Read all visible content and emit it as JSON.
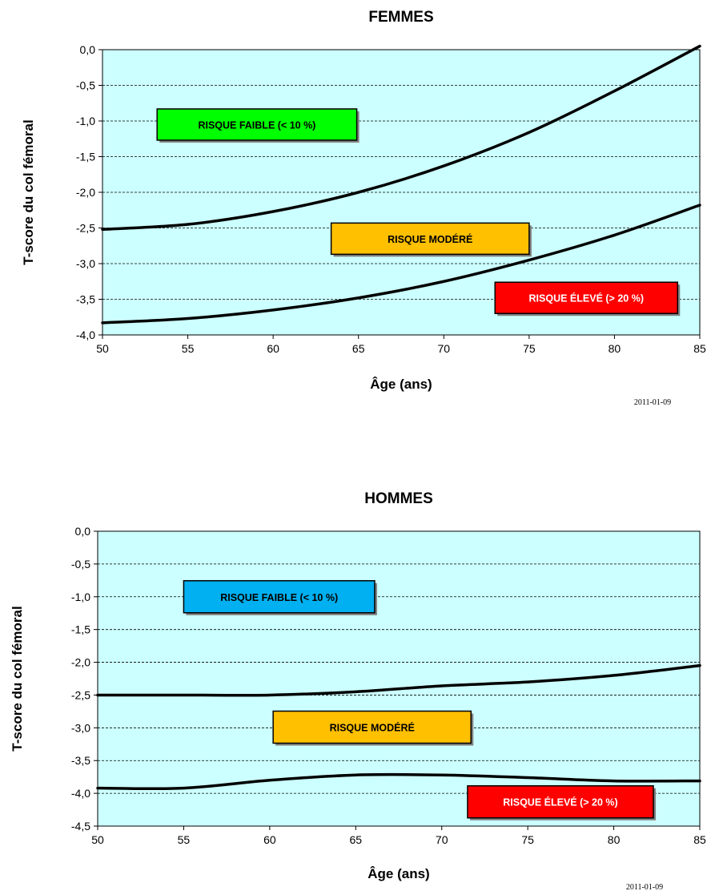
{
  "chart_data": [
    {
      "type": "line",
      "title": "FEMMES",
      "xlabel": "Âge (ans)",
      "ylabel": "T-score du col fémoral",
      "xlim": [
        50,
        85
      ],
      "ylim": [
        -4.0,
        0.0
      ],
      "x_ticks": [
        "50",
        "55",
        "60",
        "65",
        "70",
        "75",
        "80",
        "85"
      ],
      "y_ticks": [
        "0,0",
        "-0,5",
        "-1,0",
        "-1,5",
        "-2,0",
        "-2,5",
        "-3,0",
        "-3,5",
        "-4,0"
      ],
      "grid": "horizontal-dashed",
      "background_color": "#ccffff",
      "date_stamp": "2011-01-09",
      "series": [
        {
          "x": [
            50,
            55,
            60,
            65,
            70,
            75,
            80,
            85
          ],
          "y": [
            -2.52,
            -2.45,
            -2.27,
            -2.0,
            -1.63,
            -1.16,
            -0.58,
            0.05
          ]
        },
        {
          "x": [
            50,
            55,
            60,
            65,
            70,
            75,
            80,
            85
          ],
          "y": [
            -3.83,
            -3.77,
            -3.65,
            -3.48,
            -3.25,
            -2.95,
            -2.6,
            -2.18
          ]
        }
      ],
      "zones": [
        {
          "label": "RISQUE FAIBLE (< 10 %)",
          "color": "#00ff00",
          "text_color": "#000000",
          "x_from": 53.2,
          "x_to": 64.9,
          "y_center": -1.05
        },
        {
          "label": "RISQUE MODÉRÉ",
          "color": "#ffc000",
          "text_color": "#000000",
          "x_from": 63.4,
          "x_to": 75.0,
          "y_center": -2.65
        },
        {
          "label": "RISQUE ÉLEVÉ (> 20 %)",
          "color": "#ff0000",
          "text_color": "#ffffff",
          "x_from": 73.0,
          "x_to": 83.7,
          "y_center": -3.48
        }
      ]
    },
    {
      "type": "line",
      "title": "HOMMES",
      "xlabel": "Âge (ans)",
      "ylabel": "T-score du col fémoral",
      "xlim": [
        50,
        85
      ],
      "ylim": [
        -4.5,
        0.0
      ],
      "x_ticks": [
        "50",
        "55",
        "60",
        "65",
        "70",
        "75",
        "80",
        "85"
      ],
      "y_ticks": [
        "0,0",
        "-0,5",
        "-1,0",
        "-1,5",
        "-2,0",
        "-2,5",
        "-3,0",
        "-3,5",
        "-4,0",
        "-4,5"
      ],
      "grid": "horizontal-dashed",
      "background_color": "#ccffff",
      "date_stamp": "2011-01-09",
      "series": [
        {
          "x": [
            50,
            55,
            60,
            65,
            70,
            75,
            80,
            85
          ],
          "y": [
            -2.5,
            -2.5,
            -2.5,
            -2.45,
            -2.36,
            -2.3,
            -2.2,
            -2.05
          ]
        },
        {
          "x": [
            50,
            55,
            60,
            65,
            70,
            75,
            80,
            85
          ],
          "y": [
            -3.92,
            -3.92,
            -3.8,
            -3.72,
            -3.72,
            -3.76,
            -3.81,
            -3.81
          ]
        }
      ],
      "zones": [
        {
          "label": "RISQUE FAIBLE (< 10 %)",
          "color": "#00b0f0",
          "text_color": "#000000",
          "x_from": 55.0,
          "x_to": 66.1,
          "y_center": -1.0
        },
        {
          "label": "RISQUE MODÉRÉ",
          "color": "#ffc000",
          "text_color": "#000000",
          "x_from": 60.2,
          "x_to": 71.7,
          "y_center": -2.99
        },
        {
          "label": "RISQUE ÉLEVÉ (> 20 %)",
          "color": "#ff0000",
          "text_color": "#ffffff",
          "x_from": 71.5,
          "x_to": 82.3,
          "y_center": -4.13
        }
      ]
    }
  ]
}
